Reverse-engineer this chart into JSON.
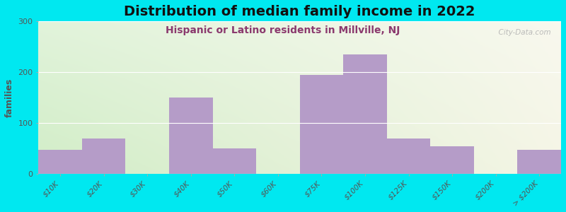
{
  "title": "Distribution of median family income in 2022",
  "subtitle": "Hispanic or Latino residents in Millville, NJ",
  "ylabel": "families",
  "categories": [
    "$10K",
    "$20K",
    "$30K",
    "$40K",
    "$50K",
    "$60K",
    "$75K",
    "$100K",
    "$125K",
    "$150K",
    "$200K",
    "> $200K"
  ],
  "values": [
    47,
    70,
    0,
    150,
    50,
    0,
    195,
    235,
    70,
    55,
    0,
    47
  ],
  "bar_color": "#b59cc8",
  "bg_outer": "#00e8f0",
  "ylim": [
    0,
    300
  ],
  "yticks": [
    0,
    100,
    200,
    300
  ],
  "title_fontsize": 14,
  "subtitle_fontsize": 10,
  "ylabel_fontsize": 9,
  "watermark": "  City-Data.com"
}
